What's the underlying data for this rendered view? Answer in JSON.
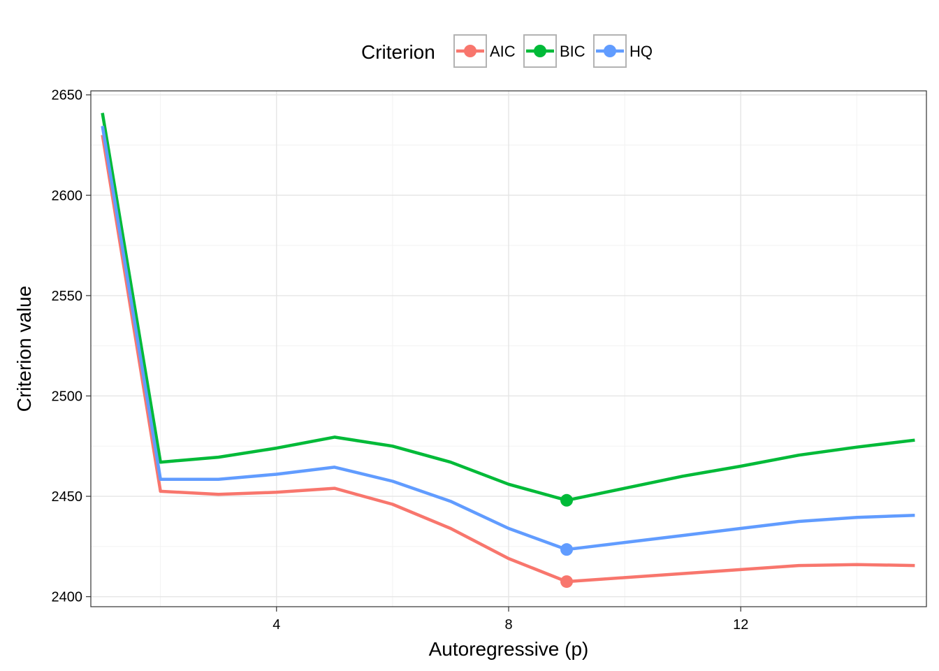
{
  "chart_data": {
    "type": "line",
    "title": "",
    "xlabel": "Autoregressive (p)",
    "ylabel": "Criterion value",
    "xlim": [
      0.8,
      15.2
    ],
    "ylim": [
      2395,
      2652
    ],
    "x_ticks": [
      4,
      8,
      12
    ],
    "y_ticks": [
      2400,
      2450,
      2500,
      2550,
      2600,
      2650
    ],
    "grid": true,
    "legend": {
      "title": "Criterion",
      "position": "top"
    },
    "x": [
      1,
      2,
      3,
      4,
      5,
      6,
      7,
      8,
      9,
      10,
      11,
      12,
      13,
      14,
      15
    ],
    "series": [
      {
        "name": "AIC",
        "color": "#F8766D",
        "values": [
          2630,
          2452.5,
          2451,
          2452,
          2454,
          2446,
          2434,
          2419,
          2407.5,
          2409.5,
          2411.5,
          2413.5,
          2415.5,
          2416,
          2415.5
        ],
        "min_x": 9,
        "min_y": 2407.5
      },
      {
        "name": "BIC",
        "color": "#00BA38",
        "values": [
          2641,
          2467,
          2469.5,
          2474,
          2479.5,
          2475,
          2467,
          2456,
          2448,
          2454,
          2460,
          2465,
          2470.5,
          2474.5,
          2478
        ],
        "min_x": 9,
        "min_y": 2448
      },
      {
        "name": "HQ",
        "color": "#619CFF",
        "values": [
          2634.5,
          2458.5,
          2458.5,
          2461,
          2464.5,
          2457.5,
          2447.5,
          2434,
          2423.5,
          2427,
          2430.5,
          2434,
          2437.5,
          2439.5,
          2440.5
        ],
        "min_x": 9,
        "min_y": 2423.5
      }
    ]
  }
}
